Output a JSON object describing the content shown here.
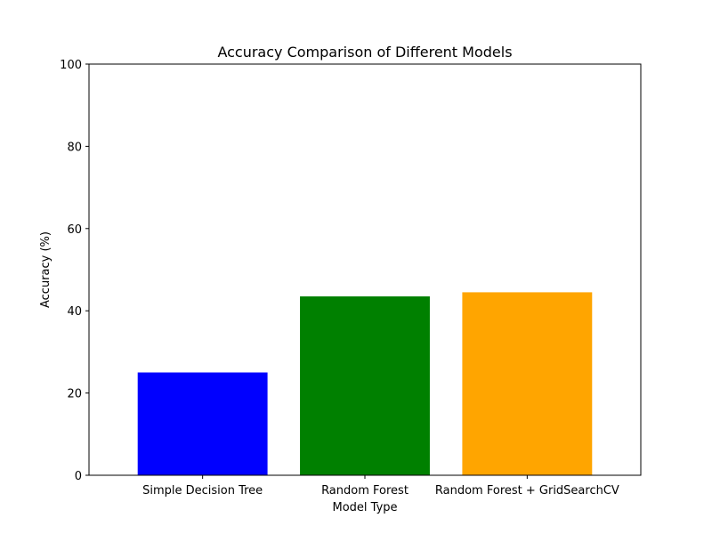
{
  "chart_data": {
    "type": "bar",
    "title": "Accuracy Comparison of Different Models",
    "xlabel": "Model Type",
    "ylabel": "Accuracy (%)",
    "categories": [
      "Simple Decision Tree",
      "Random Forest",
      "Random Forest + GridSearchCV"
    ],
    "values": [
      25.0,
      43.5,
      44.5
    ],
    "colors": [
      "#0000ff",
      "#008000",
      "#ffa500"
    ],
    "ylim": [
      0,
      100
    ],
    "yticks": [
      0,
      20,
      40,
      60,
      80,
      100
    ],
    "grid": false,
    "legend": "none"
  }
}
